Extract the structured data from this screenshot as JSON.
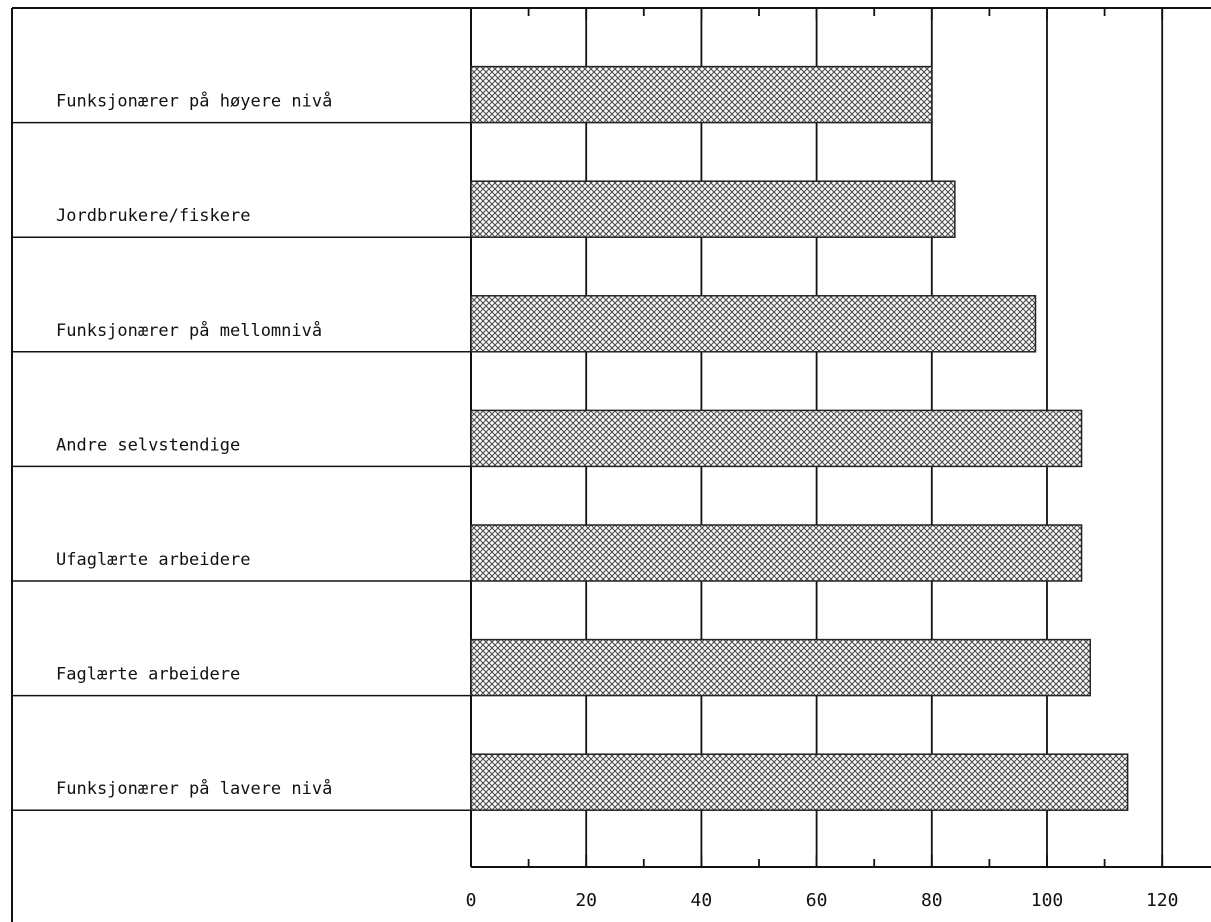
{
  "chart_data": {
    "type": "bar",
    "orientation": "horizontal",
    "categories": [
      "Funksjonærer på høyere nivå",
      "Jordbrukere/fiskere",
      "Funksjonærer på mellomnivå",
      "Andre selvstendige",
      "Ufaglærte arbeidere",
      "Faglærte arbeidere",
      "Funksjonærer på lavere nivå"
    ],
    "values": [
      80,
      84,
      98,
      106,
      106,
      107.5,
      114
    ],
    "xlim": [
      0,
      120
    ],
    "x_ticks": [
      0,
      20,
      40,
      60,
      80,
      100,
      120
    ],
    "x_tick_labels": [
      "0",
      "20",
      "40",
      "60",
      "80",
      "100",
      "120"
    ],
    "grid": true,
    "title": "",
    "xlabel": "",
    "ylabel": "",
    "bar_fill": "#9a9a9a",
    "bar_pattern": "crosshatch"
  }
}
